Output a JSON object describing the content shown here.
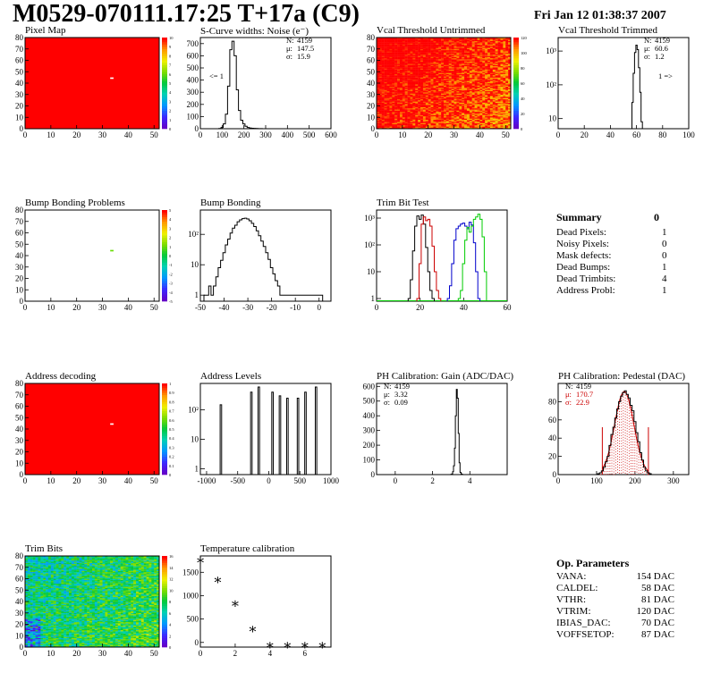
{
  "header": {
    "title": "M0529-070111.17:25 T+17a (C9)",
    "date": "Fri Jan 12 01:38:37 2007"
  },
  "colors": {
    "hist_black": "#000000",
    "trim_red": "#cc0000",
    "trim_blue": "#0000cc",
    "trim_green": "#00cc00",
    "stats_red": "#cc0000",
    "map_red": "#ff0000"
  },
  "chart_data": [
    {
      "id": "pixel_map",
      "type": "heatmap",
      "title": "Pixel Map",
      "xlim": [
        0,
        52
      ],
      "ylim": [
        0,
        80
      ],
      "xticks": [
        0,
        10,
        20,
        30,
        40,
        50
      ],
      "yticks": [
        0,
        10,
        20,
        30,
        40,
        50,
        60,
        70,
        80
      ],
      "zlim": [
        0,
        10
      ],
      "zticks": [
        "0",
        "1",
        "2",
        "3",
        "4",
        "5",
        "6",
        "7",
        "8",
        "9",
        "10"
      ],
      "fill_value": 10,
      "special": [
        {
          "x": 33,
          "y": 44,
          "value": 0
        }
      ]
    },
    {
      "id": "scurve_widths",
      "type": "histogram",
      "title": "S-Curve widths: Noise (e⁻)",
      "xlim": [
        0,
        600
      ],
      "ylim": [
        0,
        750
      ],
      "xticks": [
        0,
        100,
        200,
        300,
        400,
        500,
        600
      ],
      "yticks": [
        0,
        100,
        200,
        300,
        400,
        500,
        600,
        700
      ],
      "stats": {
        "N": "4159",
        "mu": "147.5",
        "sigma": "15.9"
      },
      "annotation": "<= 1",
      "bins_x": [
        90,
        100,
        110,
        120,
        130,
        140,
        150,
        160,
        170,
        180,
        190,
        200,
        210,
        220,
        230,
        240,
        250,
        260,
        270,
        280,
        290
      ],
      "bins_y": [
        2,
        10,
        40,
        120,
        350,
        650,
        720,
        600,
        320,
        150,
        70,
        40,
        20,
        10,
        6,
        4,
        3,
        2,
        1,
        1,
        0
      ]
    },
    {
      "id": "vcal_untrimmed",
      "type": "heatmap",
      "title": "Vcal Threshold Untrimmed",
      "xlim": [
        0,
        52
      ],
      "ylim": [
        0,
        80
      ],
      "xticks": [
        0,
        10,
        20,
        30,
        40,
        50
      ],
      "yticks": [
        0,
        10,
        20,
        30,
        40,
        50,
        60,
        70,
        80
      ],
      "zticks": [
        "0",
        "20",
        "40",
        "60",
        "80",
        "100",
        "120"
      ],
      "zlim": [
        0,
        130
      ]
    },
    {
      "id": "vcal_trimmed",
      "type": "histogram",
      "title": "Vcal Threshold Trimmed",
      "log": true,
      "xlim": [
        0,
        100
      ],
      "xticks": [
        0,
        20,
        40,
        60,
        80,
        100
      ],
      "yticks_log": [
        "10",
        "10²",
        "10³"
      ],
      "stats": {
        "N": "4159",
        "mu": "60.6",
        "sigma": "1.2"
      },
      "annotation": "1 =>",
      "bins_x": [
        56,
        57,
        58,
        59,
        60,
        61,
        62,
        63,
        64,
        65
      ],
      "bins_y": [
        3,
        30,
        220,
        900,
        1500,
        1100,
        320,
        60,
        8,
        2
      ]
    },
    {
      "id": "bump_problems",
      "type": "heatmap",
      "title": "Bump Bonding Problems",
      "xlim": [
        0,
        52
      ],
      "ylim": [
        0,
        80
      ],
      "xticks": [
        0,
        10,
        20,
        30,
        40,
        50
      ],
      "yticks": [
        0,
        10,
        20,
        30,
        40,
        50,
        60,
        70,
        80
      ],
      "zticks": [
        "-5",
        "-4",
        "-3",
        "-2",
        "-1",
        "0",
        "1",
        "2",
        "3",
        "4",
        "5"
      ],
      "special": [
        {
          "x": 33,
          "y": 44,
          "value": 1
        }
      ]
    },
    {
      "id": "bump_bonding",
      "type": "histogram",
      "title": "Bump Bonding",
      "log": true,
      "xlim": [
        -50,
        5
      ],
      "xticks": [
        -50,
        -40,
        -30,
        -20,
        -10,
        0
      ],
      "yticks_log": [
        "1",
        "10",
        "10²"
      ],
      "bins_x": [
        -48,
        -47,
        -46,
        -45,
        -44,
        -43,
        -42,
        -41,
        -40,
        -39,
        -38,
        -37,
        -36,
        -35,
        -34,
        -33,
        -32,
        -31,
        -30,
        -29,
        -28,
        -27,
        -26,
        -25,
        -24,
        -23,
        -22,
        -21,
        -20,
        -19,
        -18,
        -17,
        -16,
        -15,
        -14,
        1
      ],
      "bins_y": [
        1,
        1,
        2,
        1,
        2,
        4,
        8,
        14,
        25,
        45,
        70,
        110,
        160,
        200,
        260,
        300,
        330,
        340,
        320,
        280,
        230,
        180,
        130,
        90,
        60,
        40,
        25,
        15,
        8,
        5,
        3,
        2,
        1,
        1,
        1,
        1
      ]
    },
    {
      "id": "trim_bit_test",
      "type": "histogram",
      "title": "Trim Bit Test",
      "log": true,
      "xlim": [
        0,
        60
      ],
      "xticks": [
        0,
        20,
        40,
        60
      ],
      "yticks_log": [
        "1",
        "10",
        "10²",
        "10³"
      ],
      "series": [
        {
          "name": "black",
          "color": "#000000",
          "bins_x": [
            15,
            16,
            17,
            18,
            19,
            20,
            21,
            22,
            23,
            24,
            25,
            26
          ],
          "bins_y": [
            1,
            5,
            60,
            500,
            1200,
            900,
            1300,
            600,
            80,
            10,
            2,
            1
          ]
        },
        {
          "name": "red",
          "color": "#cc0000",
          "bins_x": [
            19,
            20,
            21,
            22,
            23,
            24,
            25,
            26,
            27,
            28,
            29
          ],
          "bins_y": [
            1,
            20,
            600,
            1100,
            800,
            900,
            500,
            90,
            10,
            2,
            1
          ]
        },
        {
          "name": "blue",
          "color": "#0000cc",
          "bins_x": [
            33,
            34,
            35,
            36,
            37,
            38,
            39,
            40,
            41,
            42,
            43,
            44,
            45,
            46,
            47
          ],
          "bins_y": [
            1,
            3,
            20,
            150,
            400,
            500,
            600,
            650,
            500,
            400,
            700,
            550,
            120,
            10,
            1
          ]
        },
        {
          "name": "green",
          "color": "#00cc00",
          "bins_x": [
            38,
            39,
            40,
            41,
            42,
            43,
            44,
            45,
            46,
            47,
            48,
            49,
            50
          ],
          "bins_y": [
            1,
            2,
            20,
            150,
            450,
            300,
            500,
            900,
            1100,
            1400,
            900,
            200,
            10
          ]
        }
      ]
    },
    {
      "id": "address_decoding",
      "type": "heatmap",
      "title": "Address decoding",
      "xlim": [
        0,
        52
      ],
      "ylim": [
        0,
        80
      ],
      "xticks": [
        0,
        10,
        20,
        30,
        40,
        50
      ],
      "yticks": [
        0,
        10,
        20,
        30,
        40,
        50,
        60,
        70,
        80
      ],
      "zticks": [
        "0",
        "0.1",
        "0.2",
        "0.3",
        "0.4",
        "0.5",
        "0.6",
        "0.7",
        "0.8",
        "0.9",
        "1"
      ],
      "special": [
        {
          "x": 33,
          "y": 44,
          "value": 0
        }
      ]
    },
    {
      "id": "address_levels",
      "type": "histogram",
      "title": "Address Levels",
      "log": true,
      "xlim": [
        -1100,
        1000
      ],
      "xticks": [
        -1000,
        -500,
        0,
        500,
        1000
      ],
      "yticks_log": [
        "1",
        "10",
        "10²"
      ],
      "peaks": [
        -770,
        -280,
        -160,
        60,
        180,
        300,
        470,
        590,
        760
      ],
      "peak_heights": [
        150,
        400,
        600,
        400,
        300,
        250,
        250,
        400,
        600
      ]
    },
    {
      "id": "ph_gain",
      "type": "histogram",
      "title": "PH Calibration: Gain (ADC/DAC)",
      "xlim": [
        -1,
        6
      ],
      "ylim": [
        0,
        620
      ],
      "xticks": [
        0,
        2,
        4
      ],
      "yticks": [
        0,
        100,
        200,
        300,
        400,
        500,
        600
      ],
      "stats": {
        "N": "4159",
        "mu": "3.32",
        "sigma": "0.09"
      },
      "bins_x": [
        3.0,
        3.05,
        3.1,
        3.15,
        3.2,
        3.25,
        3.3,
        3.35,
        3.4,
        3.45,
        3.5,
        3.55,
        3.6
      ],
      "bins_y": [
        2,
        5,
        20,
        60,
        180,
        400,
        580,
        520,
        280,
        80,
        15,
        4,
        1
      ]
    },
    {
      "id": "ph_pedestal",
      "type": "histogram",
      "title": "PH Calibration: Pedestal (DAC)",
      "xlim": [
        0,
        340
      ],
      "ylim": [
        0,
        100
      ],
      "xticks": [
        0,
        100,
        200,
        300
      ],
      "yticks": [
        0,
        20,
        40,
        60,
        80
      ],
      "stats": {
        "N": "4159",
        "mu": "170.7",
        "sigma": "22.9"
      },
      "fit_range": [
        115,
        235
      ],
      "bins_x": [
        105,
        110,
        115,
        120,
        125,
        130,
        135,
        140,
        145,
        150,
        155,
        160,
        165,
        170,
        175,
        180,
        185,
        190,
        195,
        200,
        205,
        210,
        215,
        220,
        225,
        230,
        235,
        240
      ],
      "bins_y": [
        1,
        2,
        4,
        8,
        14,
        20,
        32,
        44,
        52,
        62,
        72,
        80,
        86,
        90,
        92,
        88,
        84,
        76,
        70,
        58,
        46,
        36,
        24,
        16,
        8,
        4,
        2,
        1
      ]
    },
    {
      "id": "trim_bits",
      "type": "heatmap",
      "title": "Trim Bits",
      "xlim": [
        0,
        52
      ],
      "ylim": [
        0,
        80
      ],
      "xticks": [
        0,
        10,
        20,
        30,
        40,
        50
      ],
      "yticks": [
        0,
        10,
        20,
        30,
        40,
        50,
        60,
        70,
        80
      ],
      "zticks": [
        "0",
        "2",
        "4",
        "6",
        "8",
        "10",
        "12",
        "14",
        "16"
      ]
    },
    {
      "id": "temperature_calibration",
      "type": "scatter",
      "title": "Temperature calibration",
      "xlim": [
        0,
        7.5
      ],
      "ylim": [
        -100,
        1850
      ],
      "xticks": [
        0,
        2,
        4,
        6
      ],
      "yticks": [
        0,
        500,
        1000,
        1500
      ],
      "x": [
        0,
        1,
        2,
        3,
        4,
        5,
        6,
        7
      ],
      "y": [
        1750,
        1330,
        830,
        280,
        -60,
        -60,
        -60,
        -60
      ]
    }
  ],
  "summary": {
    "header": "Summary",
    "header_value": "0",
    "rows": [
      {
        "label": "Dead Pixels:",
        "value": "1"
      },
      {
        "label": "Noisy Pixels:",
        "value": "0"
      },
      {
        "label": "Mask defects:",
        "value": "0"
      },
      {
        "label": "Dead Bumps:",
        "value": "1"
      },
      {
        "label": "Dead Trimbits:",
        "value": "4"
      },
      {
        "label": "Address Probl:",
        "value": "1"
      }
    ]
  },
  "op_parameters": {
    "header": "Op. Parameters",
    "rows": [
      {
        "label": "VANA:",
        "value": "154 DAC"
      },
      {
        "label": "CALDEL:",
        "value": "58 DAC"
      },
      {
        "label": "VTHR:",
        "value": "81 DAC"
      },
      {
        "label": "VTRIM:",
        "value": "120 DAC"
      },
      {
        "label": "IBIAS_DAC:",
        "value": "70 DAC"
      },
      {
        "label": "VOFFSETOP:",
        "value": "87 DAC"
      }
    ]
  }
}
